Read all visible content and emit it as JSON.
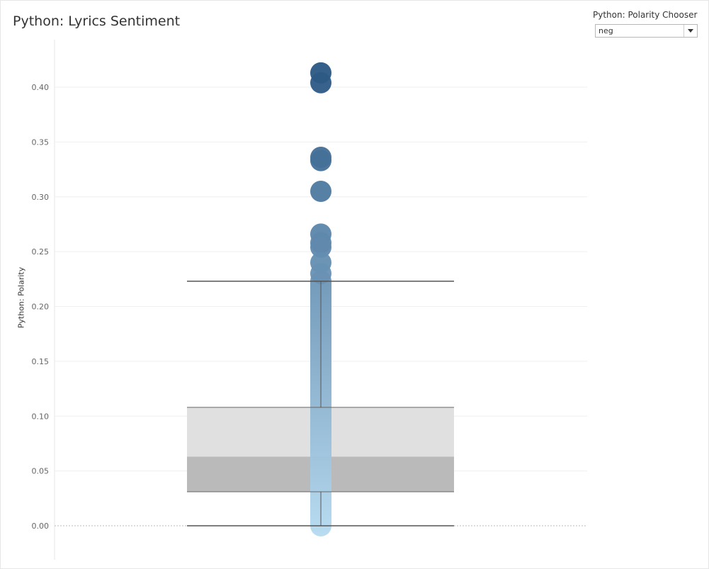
{
  "title": "Python: Lyrics Sentiment",
  "filter": {
    "label": "Python: Polarity Chooser",
    "selected": "neg"
  },
  "chart_data": {
    "type": "scatter",
    "title": "Python: Lyrics Sentiment",
    "ylabel": "Python: Polarity",
    "xlabel": "",
    "ylim": [
      -0.03,
      0.445
    ],
    "yticks": [
      0.0,
      0.05,
      0.1,
      0.15,
      0.2,
      0.25,
      0.3,
      0.35,
      0.4
    ],
    "ytick_labels": [
      "0.00",
      "0.05",
      "0.10",
      "0.15",
      "0.20",
      "0.25",
      "0.30",
      "0.35",
      "0.40"
    ],
    "grid": true,
    "color_scale": {
      "low": "#b5daf0",
      "high": "#2a5783"
    },
    "points": [
      0.413,
      0.404,
      0.336,
      0.333,
      0.305,
      0.266,
      0.258,
      0.254,
      0.24,
      0.23
    ],
    "dense_range": [
      0.0,
      0.223
    ],
    "boxplot": {
      "whisker_low": 0.0,
      "q1": 0.031,
      "median": 0.063,
      "q3": 0.108,
      "whisker_high": 0.223
    }
  }
}
